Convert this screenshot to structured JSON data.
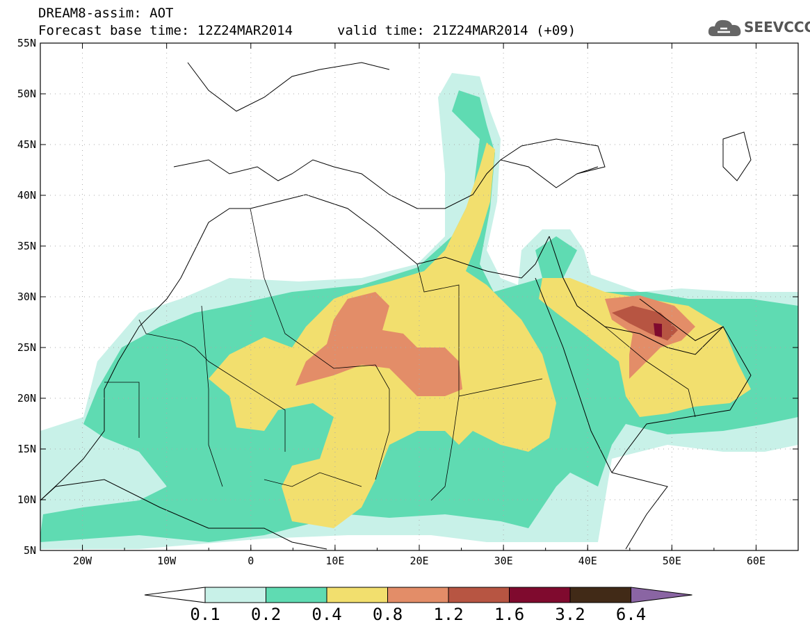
{
  "header": {
    "line1": "DREAM8-assim: AOT",
    "line2_left": "Forecast base time: 12Z24MAR2014",
    "line2_right": "valid time: 21Z24MAR2014 (+09)"
  },
  "logo": {
    "text": "SEEVCCC",
    "icon": "cloud-icon"
  },
  "map": {
    "lon_range": [
      -25,
      65
    ],
    "lat_range": [
      5,
      55
    ],
    "lat_ticks": [
      "55N",
      "50N",
      "45N",
      "40N",
      "35N",
      "30N",
      "25N",
      "20N",
      "15N",
      "10N",
      "5N"
    ],
    "lon_ticks": [
      "20W",
      "10W",
      "0",
      "10E",
      "20E",
      "30E",
      "40E",
      "50E",
      "60E"
    ],
    "colors": {
      "c1": "#c8f1e8",
      "c2": "#5fdbb2",
      "c3": "#f2df6e",
      "c4": "#e38d68",
      "c5": "#b75542",
      "c6": "#7f0a2e",
      "c7": "#412a17",
      "c8": "#8a65a3"
    }
  },
  "colorbar": {
    "labels": [
      "0.1",
      "0.2",
      "0.4",
      "0.8",
      "1.2",
      "1.6",
      "3.2",
      "6.4"
    ],
    "colors": [
      "#ffffff",
      "#c8f1e8",
      "#5fdbb2",
      "#f2df6e",
      "#e38d68",
      "#b75542",
      "#7f0a2e",
      "#412a17",
      "#8a65a3"
    ]
  }
}
